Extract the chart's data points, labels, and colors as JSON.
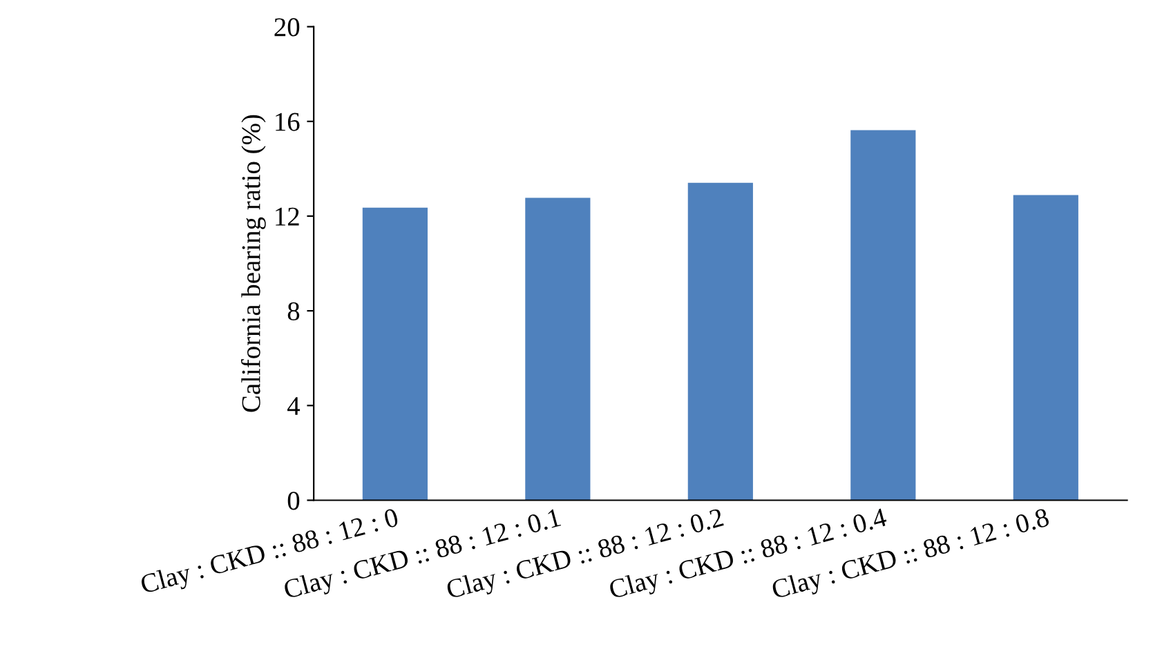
{
  "chart_data": {
    "type": "bar",
    "ylabel": "California bearing ratio (%)",
    "categories": [
      "Clay : CKD :: 88 : 12 : 0",
      "Clay : CKD :: 88 : 12 : 0.1",
      "Clay : CKD :: 88 : 12 : 0.2",
      "Clay : CKD :: 88 : 12 : 0.4",
      "Clay : CKD :: 88 : 12 : 0.8"
    ],
    "values": [
      12.36,
      12.77,
      13.41,
      15.63,
      12.89
    ],
    "color": "#4f81bd",
    "ylim": [
      0,
      20
    ],
    "yticks": [
      0,
      4,
      8,
      12,
      16,
      20
    ],
    "grid": false,
    "legend": false
  }
}
